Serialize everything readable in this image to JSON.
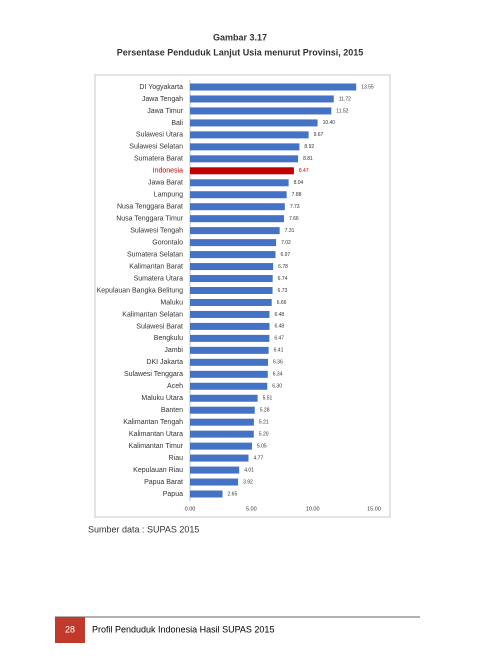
{
  "chart_data": {
    "type": "bar",
    "orientation": "horizontal",
    "caption": "Gambar 3.17",
    "title": "Persentase Penduduk Lanjut Usia menurut Provinsi, 2015",
    "categories": [
      "DI Yogyakarta",
      "Jawa Tengah",
      "Jawa Timur",
      "Bali",
      "Sulawesi Utara",
      "Sulawesi Selatan",
      "Sumatera Barat",
      "Indonesia",
      "Jawa Barat",
      "Lampung",
      "Nusa Tenggara Barat",
      "Nusa Tenggara Timur",
      "Sulawesi Tengah",
      "Gorontalo",
      "Sumatera Selatan",
      "Kalimantan Barat",
      "Sumatera Utara",
      "Kepulauan Bangka Belitung",
      "Maluku",
      "Kalimantan Selatan",
      "Sulawesi Barat",
      "Bengkulu",
      "Jambi",
      "DKI Jakarta",
      "Sulawesi Tenggara",
      "Aceh",
      "Maluku Utara",
      "Banten",
      "Kalimantan Tengah",
      "Kalimantan Utara",
      "Kalimantan Timur",
      "Riau",
      "Kepulauan Riau",
      "Papua Barat",
      "Papua"
    ],
    "values": [
      13.55,
      11.72,
      11.52,
      10.4,
      9.67,
      8.92,
      8.81,
      8.47,
      8.04,
      7.88,
      7.73,
      7.66,
      7.31,
      7.02,
      6.97,
      6.78,
      6.74,
      6.73,
      6.66,
      6.48,
      6.48,
      6.47,
      6.41,
      6.36,
      6.34,
      6.3,
      5.51,
      5.28,
      5.21,
      5.2,
      5.05,
      4.77,
      4.01,
      3.92,
      2.65
    ],
    "value_labels": [
      "13.55",
      "11.72",
      "11.52",
      "10.40",
      "9.67",
      "8.92",
      "8.81",
      "8.47",
      "8.04",
      "7.88",
      "7.73",
      "7.66",
      "7.31",
      "7.02",
      "6.97",
      "6.78",
      "6.74",
      "6.73",
      "6.66",
      "6.48",
      "6.48",
      "6.47",
      "6.41",
      "6.36",
      "6.34",
      "6.30",
      "5.51",
      "5.28",
      "5.21",
      "5.20",
      "5.05",
      "4.77",
      "4.01",
      "3.92",
      "2.65"
    ],
    "colors": [
      "#4472c4",
      "#4472c4",
      "#4472c4",
      "#4472c4",
      "#4472c4",
      "#4472c4",
      "#4472c4",
      "#c00000",
      "#4472c4",
      "#4472c4",
      "#4472c4",
      "#4472c4",
      "#4472c4",
      "#4472c4",
      "#4472c4",
      "#4472c4",
      "#4472c4",
      "#4472c4",
      "#4472c4",
      "#4472c4",
      "#4472c4",
      "#4472c4",
      "#4472c4",
      "#4472c4",
      "#4472c4",
      "#4472c4",
      "#4472c4",
      "#4472c4",
      "#4472c4",
      "#4472c4",
      "#4472c4",
      "#4472c4",
      "#4472c4",
      "#4472c4",
      "#4472c4"
    ],
    "xlim": [
      0,
      15
    ],
    "xticks": [
      {
        "value": 0,
        "label": "0.00"
      },
      {
        "value": 5,
        "label": "5.00"
      },
      {
        "value": 10,
        "label": "10.00"
      },
      {
        "value": 15,
        "label": "15.00"
      }
    ],
    "grid": false
  },
  "document": {
    "source": "Sumber data : SUPAS 2015",
    "page_number": "28",
    "footer": "Profil Penduduk Indonesia Hasil SUPAS 2015"
  }
}
